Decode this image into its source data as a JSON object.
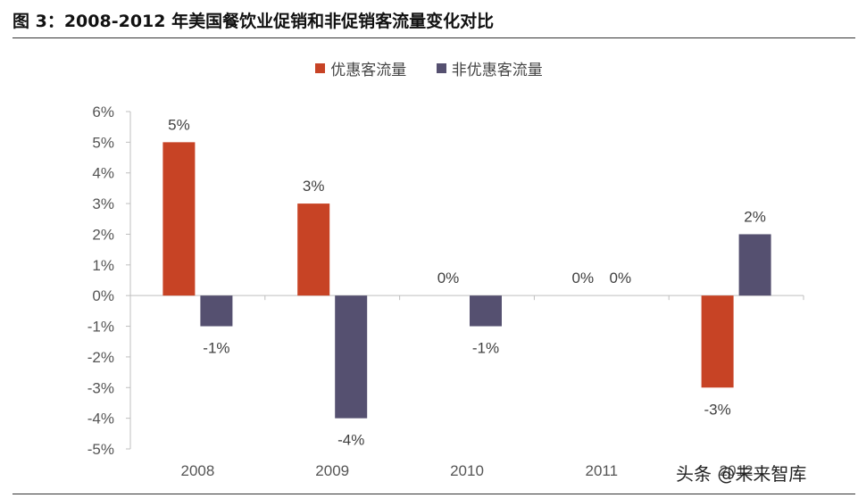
{
  "figure_title": "图 3：2008-2012 年美国餐饮业促销和非促销客流量变化对比",
  "watermark": "头条 @未来智库",
  "colors": {
    "promo": "#C74325",
    "non_promo": "#555070",
    "axis": "#BFBFBF",
    "text": "#555555"
  },
  "chart_data": {
    "type": "bar",
    "categories": [
      "2008",
      "2009",
      "2010",
      "2011",
      "2012"
    ],
    "series": [
      {
        "name": "优惠客流量",
        "values": [
          5,
          3,
          0,
          0,
          -3
        ],
        "labels": [
          "5%",
          "3%",
          "0%",
          "0%",
          "-3%"
        ]
      },
      {
        "name": "非优惠客流量",
        "values": [
          -1,
          -4,
          -1,
          0,
          2
        ],
        "labels": [
          "-1%",
          "-4%",
          "-1%",
          "0%",
          "2%"
        ]
      }
    ],
    "ylim": [
      -5,
      6
    ],
    "yticks": [
      "6%",
      "5%",
      "4%",
      "3%",
      "2%",
      "1%",
      "0%",
      "-1%",
      "-2%",
      "-3%",
      "-4%",
      "-5%"
    ],
    "legend_position": "top-center",
    "grid": false
  }
}
